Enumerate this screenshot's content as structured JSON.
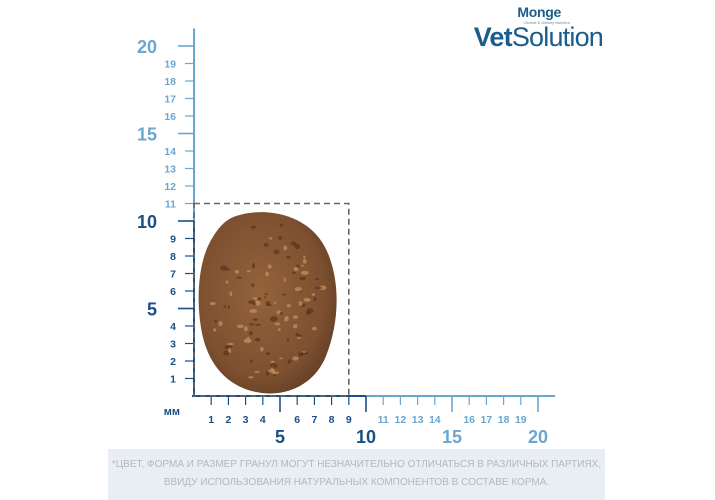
{
  "brand": {
    "small": "Monge",
    "tagline": "Clinical & Dietary Nutrition",
    "main_bold": "Vet",
    "main_regular": "Solution"
  },
  "ruler": {
    "unit": "мм",
    "y_major": [
      {
        "value": 20,
        "label": "20"
      },
      {
        "value": 15,
        "label": "15"
      },
      {
        "value": 10,
        "label": "10"
      },
      {
        "value": 5,
        "label": "5"
      }
    ],
    "y_minor": [
      {
        "value": 19,
        "label": "19"
      },
      {
        "value": 18,
        "label": "18"
      },
      {
        "value": 17,
        "label": "17"
      },
      {
        "value": 16,
        "label": "16"
      },
      {
        "value": 14,
        "label": "14"
      },
      {
        "value": 13,
        "label": "13"
      },
      {
        "value": 12,
        "label": "12"
      },
      {
        "value": 11,
        "label": "11"
      },
      {
        "value": 9,
        "label": "9"
      },
      {
        "value": 8,
        "label": "8"
      },
      {
        "value": 7,
        "label": "7"
      },
      {
        "value": 6,
        "label": "6"
      },
      {
        "value": 4,
        "label": "4"
      },
      {
        "value": 3,
        "label": "3"
      },
      {
        "value": 2,
        "label": "2"
      },
      {
        "value": 1,
        "label": "1"
      }
    ],
    "x_major": [
      {
        "value": 5,
        "label": "5"
      },
      {
        "value": 10,
        "label": "10"
      },
      {
        "value": 15,
        "label": "15"
      },
      {
        "value": 20,
        "label": "20"
      }
    ],
    "x_minor": [
      {
        "value": 1,
        "label": "1"
      },
      {
        "value": 2,
        "label": "2"
      },
      {
        "value": 3,
        "label": "3"
      },
      {
        "value": 4,
        "label": "4"
      },
      {
        "value": 6,
        "label": "6"
      },
      {
        "value": 7,
        "label": "7"
      },
      {
        "value": 8,
        "label": "8"
      },
      {
        "value": 9,
        "label": "9"
      },
      {
        "value": 11,
        "label": "11"
      },
      {
        "value": 12,
        "label": "12"
      },
      {
        "value": 13,
        "label": "13"
      },
      {
        "value": 14,
        "label": "14"
      },
      {
        "value": 16,
        "label": "16"
      },
      {
        "value": 17,
        "label": "17"
      },
      {
        "value": 18,
        "label": "18"
      },
      {
        "value": 19,
        "label": "19"
      }
    ],
    "kibble_width_mm": 9,
    "kibble_height_mm": 11,
    "dark_range_max": 10,
    "colors": {
      "dark": "#1a4f86",
      "light": "#6aa6cf",
      "dashed": "#666666",
      "kibble": "#8a5a34"
    }
  },
  "footnote": {
    "line1": "*ЦВЕТ, ФОРМА И РАЗМЕР ГРАНУЛ МОГУТ НЕЗНАЧИТЕЛЬНО ОТЛИЧАТЬСЯ В РАЗЛИЧНЫХ ПАРТИЯХ,",
    "line2": "ВВИДУ ИСПОЛЬЗОВАНИЯ НАТУРАЛЬНЫХ КОМПОНЕНТОВ В СОСТАВЕ КОРМА."
  }
}
